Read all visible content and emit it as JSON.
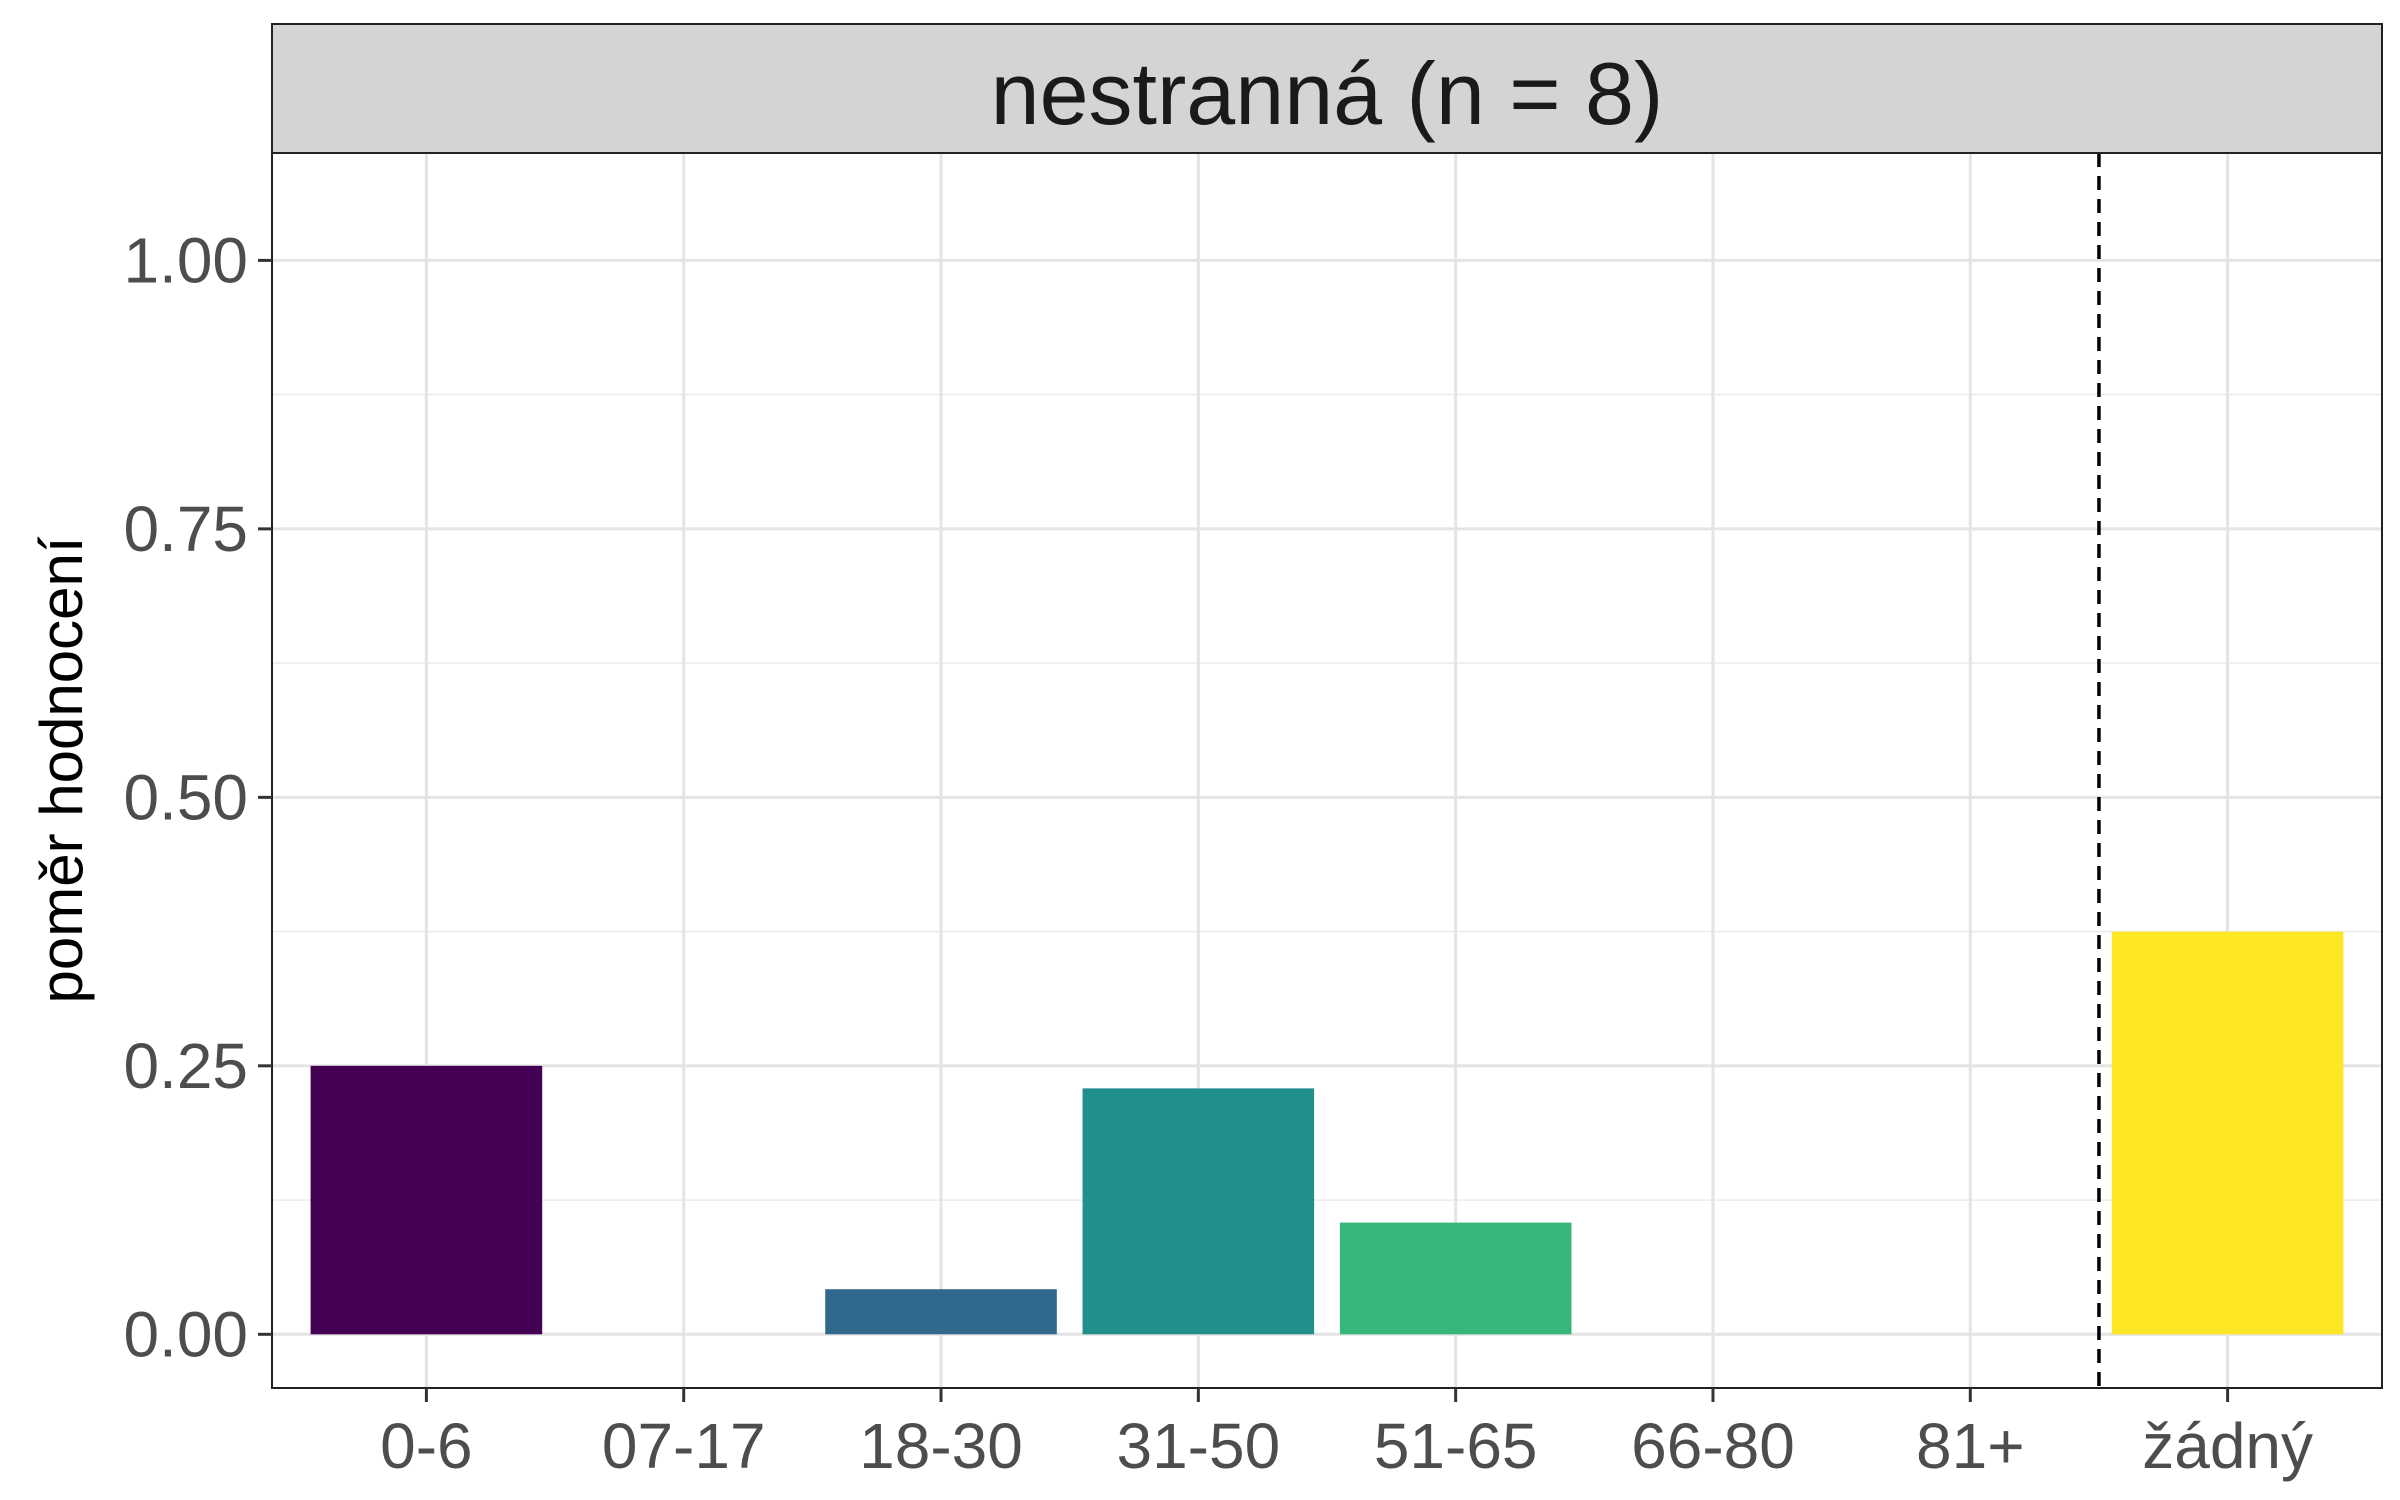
{
  "chart_data": {
    "type": "bar",
    "facet_title": "nestranná (n = 8)",
    "ylabel": "poměr hodnocení",
    "xlabel": "",
    "categories": [
      "0-6",
      "07-17",
      "18-30",
      "31-50",
      "51-65",
      "66-80",
      "81+",
      "žádný"
    ],
    "values": [
      0.25,
      0,
      0.042,
      0.229,
      0.104,
      0,
      0,
      0.375
    ],
    "bar_colors": [
      "#440154",
      "#443A83",
      "#31688E",
      "#21908C",
      "#35B779",
      "#8FD744",
      "#C8E020",
      "#FDE725"
    ],
    "ylim": [
      -0.05,
      1.1
    ],
    "yticks": [
      0.0,
      0.25,
      0.5,
      0.75,
      1.0
    ],
    "ytick_labels": [
      "0.00",
      "0.25",
      "0.50",
      "0.75",
      "1.00"
    ],
    "reference_line": {
      "between": [
        "81+",
        "žádný"
      ],
      "style": "dashed"
    },
    "grid": true,
    "legend": "none"
  }
}
